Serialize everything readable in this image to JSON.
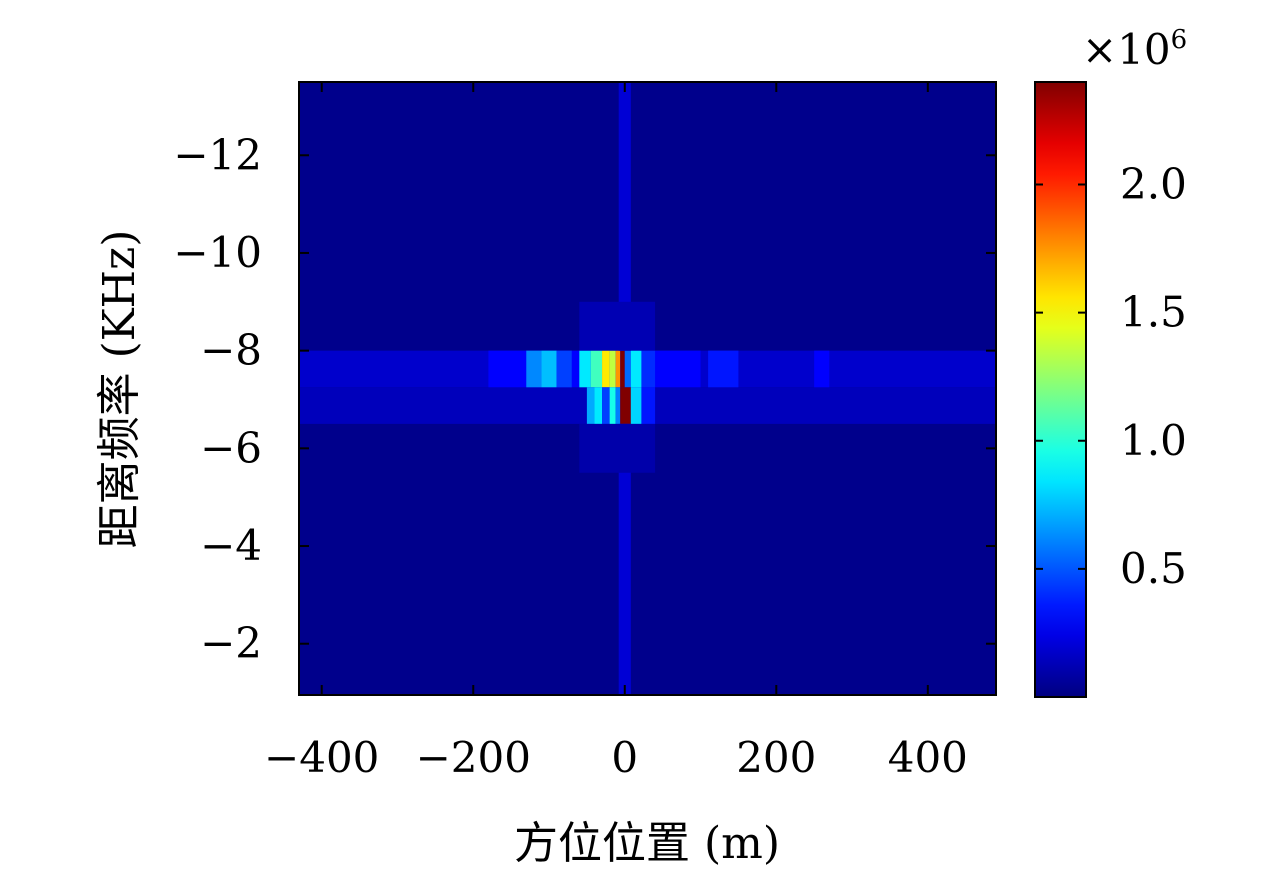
{
  "chart_data": {
    "type": "heatmap",
    "title": "",
    "xlabel": "方位位置 (m)",
    "ylabel": "距离频率 (KHz)",
    "x_ticks": [
      -400,
      -200,
      0,
      200,
      400
    ],
    "x_tick_labels": [
      "−400",
      "−200",
      "0",
      "200",
      "400"
    ],
    "y_ticks": [
      -12,
      -10,
      -8,
      -6,
      -4,
      -2
    ],
    "y_tick_labels": [
      "−12",
      "−10",
      "−8",
      "−6",
      "−4",
      "−2"
    ],
    "xlim": [
      -430,
      490
    ],
    "ylim": [
      -0.95,
      -13.5
    ],
    "y_axis_reversed": true,
    "colormap": "jet",
    "colorbar": {
      "range": [
        0,
        2.4
      ],
      "ticks": [
        0.5,
        1.0,
        1.5,
        2.0
      ],
      "tick_labels": [
        "0.5",
        "1.0",
        "1.5",
        "2.0"
      ],
      "multiplier_base": "×10",
      "multiplier_exp": "6"
    },
    "background_value": 0.03,
    "cells": [
      {
        "x0": -430,
        "x1": 490,
        "y0": -8.0,
        "y1": -7.25,
        "v": 0.18
      },
      {
        "x0": -430,
        "x1": 490,
        "y0": -7.25,
        "y1": -6.5,
        "v": 0.14
      },
      {
        "x0": -180,
        "x1": 100,
        "y0": -8.0,
        "y1": -7.25,
        "v": 0.3
      },
      {
        "x0": -130,
        "x1": -110,
        "y0": -8.0,
        "y1": -7.25,
        "v": 0.62
      },
      {
        "x0": -110,
        "x1": -90,
        "y0": -8.0,
        "y1": -7.25,
        "v": 0.75
      },
      {
        "x0": -90,
        "x1": -70,
        "y0": -8.0,
        "y1": -7.25,
        "v": 0.45
      },
      {
        "x0": 110,
        "x1": 150,
        "y0": -8.0,
        "y1": -7.25,
        "v": 0.35
      },
      {
        "x0": 250,
        "x1": 270,
        "y0": -8.0,
        "y1": -7.25,
        "v": 0.3
      },
      {
        "x0": -60,
        "x1": -45,
        "y0": -8.0,
        "y1": -7.25,
        "v": 0.85
      },
      {
        "x0": -45,
        "x1": -30,
        "y0": -8.0,
        "y1": -7.25,
        "v": 1.05
      },
      {
        "x0": -30,
        "x1": -20,
        "y0": -8.0,
        "y1": -7.25,
        "v": 1.55
      },
      {
        "x0": -20,
        "x1": -12,
        "y0": -8.0,
        "y1": -7.25,
        "v": 1.35
      },
      {
        "x0": -12,
        "x1": -6,
        "y0": -8.0,
        "y1": -7.25,
        "v": 1.75
      },
      {
        "x0": -6,
        "x1": 0,
        "y0": -8.0,
        "y1": -7.25,
        "v": 2.4
      },
      {
        "x0": 0,
        "x1": 8,
        "y0": -8.0,
        "y1": -7.25,
        "v": 0.55
      },
      {
        "x0": 8,
        "x1": 22,
        "y0": -8.0,
        "y1": -7.25,
        "v": 0.85
      },
      {
        "x0": 22,
        "x1": 40,
        "y0": -8.0,
        "y1": -7.25,
        "v": 0.4
      },
      {
        "x0": -50,
        "x1": -40,
        "y0": -7.25,
        "y1": -6.5,
        "v": 0.7
      },
      {
        "x0": -40,
        "x1": -30,
        "y0": -7.25,
        "y1": -6.5,
        "v": 0.85
      },
      {
        "x0": -30,
        "x1": -20,
        "y0": -7.25,
        "y1": -6.5,
        "v": 0.45
      },
      {
        "x0": -20,
        "x1": -12,
        "y0": -7.25,
        "y1": -6.5,
        "v": 0.95
      },
      {
        "x0": -12,
        "x1": -6,
        "y0": -7.25,
        "y1": -6.5,
        "v": 0.6
      },
      {
        "x0": -6,
        "x1": 8,
        "y0": -7.25,
        "y1": -6.5,
        "v": 2.4
      },
      {
        "x0": 8,
        "x1": 22,
        "y0": -7.25,
        "y1": -6.5,
        "v": 0.8
      },
      {
        "x0": 22,
        "x1": 40,
        "y0": -7.25,
        "y1": -6.5,
        "v": 0.35
      },
      {
        "x0": -8,
        "x1": 8,
        "y0": -13.5,
        "y1": -8.0,
        "v": 0.2
      },
      {
        "x0": -8,
        "x1": 8,
        "y0": -8.7,
        "y1": -8.0,
        "v": 0.38
      },
      {
        "x0": -8,
        "x1": 8,
        "y0": -6.5,
        "y1": -0.95,
        "v": 0.2
      },
      {
        "x0": -8,
        "x1": 8,
        "y0": -6.5,
        "y1": -5.7,
        "v": 0.4
      },
      {
        "x0": -60,
        "x1": 40,
        "y0": -9.0,
        "y1": -8.0,
        "v": 0.12
      },
      {
        "x0": -60,
        "x1": 40,
        "y0": -6.5,
        "y1": -5.5,
        "v": 0.1
      }
    ]
  }
}
